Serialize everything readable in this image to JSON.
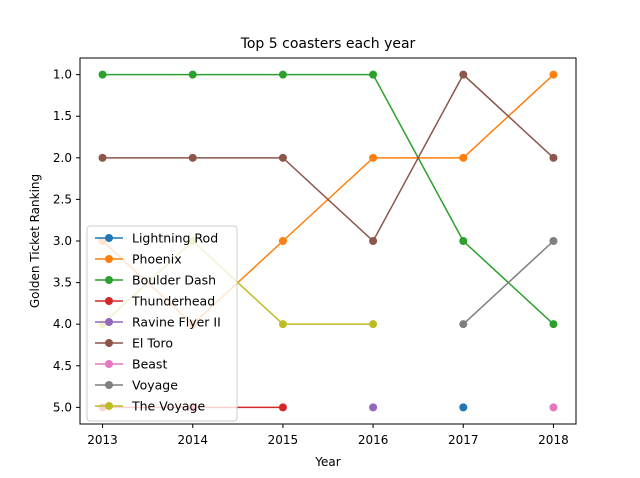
{
  "chart_data": {
    "type": "line",
    "title": "Top 5 coasters each year",
    "xlabel": "Year",
    "ylabel": "Golden Ticket Ranking",
    "x": [
      2013,
      2014,
      2015,
      2016,
      2017,
      2018
    ],
    "x_ticks": [
      "2013",
      "2014",
      "2015",
      "2016",
      "2017",
      "2018"
    ],
    "y_ticks": [
      "1.0",
      "1.5",
      "2.0",
      "2.5",
      "3.0",
      "3.5",
      "4.0",
      "4.5",
      "5.0"
    ],
    "ylim": [
      5.2,
      0.8
    ],
    "y_inverted": true,
    "grid": false,
    "legend_position": "lower-left",
    "series": [
      {
        "name": "Lightning Rod",
        "color": "#1f77b4",
        "values": [
          null,
          null,
          null,
          null,
          5,
          null
        ]
      },
      {
        "name": "Phoenix",
        "color": "#ff7f0e",
        "values": [
          3,
          4,
          3,
          2,
          2,
          1
        ]
      },
      {
        "name": "Boulder Dash",
        "color": "#2ca02c",
        "values": [
          1,
          1,
          1,
          1,
          3,
          4
        ]
      },
      {
        "name": "Thunderhead",
        "color": "#d62728",
        "values": [
          5,
          5,
          5,
          null,
          null,
          null
        ]
      },
      {
        "name": "Ravine Flyer II",
        "color": "#9467bd",
        "values": [
          null,
          null,
          null,
          5,
          null,
          null
        ]
      },
      {
        "name": "El Toro",
        "color": "#8c564b",
        "values": [
          2,
          2,
          2,
          3,
          1,
          2
        ]
      },
      {
        "name": "Beast",
        "color": "#e377c2",
        "values": [
          null,
          null,
          null,
          null,
          null,
          5
        ]
      },
      {
        "name": "Voyage",
        "color": "#7f7f7f",
        "values": [
          null,
          null,
          null,
          null,
          4,
          3
        ]
      },
      {
        "name": "The Voyage",
        "color": "#bcbd22",
        "values": [
          4,
          3,
          4,
          4,
          null,
          null
        ]
      }
    ]
  }
}
